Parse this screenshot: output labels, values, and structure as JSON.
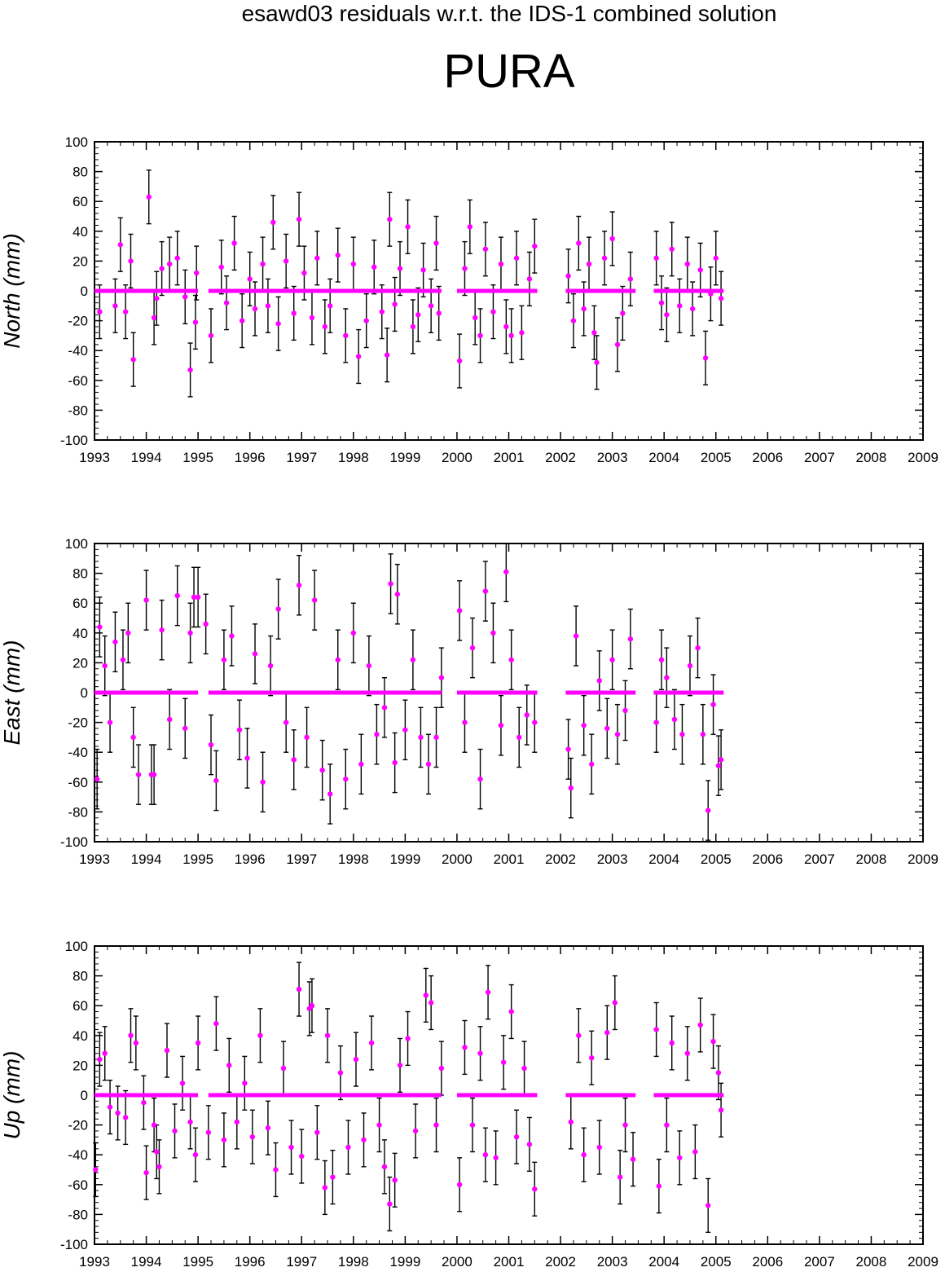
{
  "header": {
    "subtitle": "esawd03 residuals w.r.t. the IDS-1 combined solution",
    "station": "PURA"
  },
  "colors": {
    "marker": "#ff00ff",
    "errorbar": "#000000",
    "axis": "#000000"
  },
  "chart_data": [
    {
      "type": "scatter",
      "panel": "north",
      "ylabel": "North (mm)",
      "xlim": [
        1993,
        2009
      ],
      "ylim": [
        -100,
        100
      ],
      "x_ticks": [
        "1993",
        "1994",
        "1995",
        "1996",
        "1997",
        "1998",
        "1999",
        "2000",
        "2001",
        "2002",
        "2003",
        "2004",
        "2005",
        "2006",
        "2007",
        "2008",
        "2009"
      ],
      "y_ticks": [
        "100",
        "80",
        "60",
        "40",
        "20",
        "0",
        "-20",
        "-40",
        "-60",
        "-80",
        "-100"
      ],
      "error_bars": true,
      "zero_line_segments": [
        [
          1993.0,
          1995.0
        ],
        [
          1995.2,
          1999.7
        ],
        [
          2000.0,
          2001.55
        ],
        [
          2002.1,
          2003.45
        ],
        [
          2003.8,
          2005.15
        ]
      ],
      "typical_error_mm": 18,
      "points": [
        [
          1993.1,
          -14
        ],
        [
          1993.4,
          -10
        ],
        [
          1993.5,
          31
        ],
        [
          1993.6,
          -14
        ],
        [
          1993.7,
          20
        ],
        [
          1993.75,
          -46
        ],
        [
          1994.05,
          63
        ],
        [
          1994.15,
          -18
        ],
        [
          1994.2,
          -5
        ],
        [
          1994.3,
          15
        ],
        [
          1994.45,
          18
        ],
        [
          1994.6,
          22
        ],
        [
          1994.75,
          -4
        ],
        [
          1994.85,
          -53
        ],
        [
          1994.95,
          -21
        ],
        [
          1994.97,
          12
        ],
        [
          1995.25,
          -30
        ],
        [
          1995.45,
          16
        ],
        [
          1995.55,
          -8
        ],
        [
          1995.7,
          32
        ],
        [
          1995.85,
          -20
        ],
        [
          1996.0,
          8
        ],
        [
          1996.1,
          -12
        ],
        [
          1996.25,
          18
        ],
        [
          1996.35,
          -10
        ],
        [
          1996.45,
          46
        ],
        [
          1996.55,
          -22
        ],
        [
          1996.7,
          20
        ],
        [
          1996.85,
          -15
        ],
        [
          1996.95,
          48
        ],
        [
          1997.05,
          12
        ],
        [
          1997.2,
          -18
        ],
        [
          1997.3,
          22
        ],
        [
          1997.45,
          -24
        ],
        [
          1997.55,
          -10
        ],
        [
          1997.7,
          24
        ],
        [
          1997.85,
          -30
        ],
        [
          1998.0,
          18
        ],
        [
          1998.1,
          -44
        ],
        [
          1998.25,
          -20
        ],
        [
          1998.4,
          16
        ],
        [
          1998.55,
          -14
        ],
        [
          1998.65,
          -43
        ],
        [
          1998.7,
          48
        ],
        [
          1998.8,
          -9
        ],
        [
          1998.9,
          15
        ],
        [
          1999.05,
          43
        ],
        [
          1999.15,
          -24
        ],
        [
          1999.25,
          -16
        ],
        [
          1999.35,
          14
        ],
        [
          1999.5,
          -10
        ],
        [
          1999.6,
          32
        ],
        [
          1999.65,
          -15
        ],
        [
          2000.05,
          -47
        ],
        [
          2000.15,
          15
        ],
        [
          2000.25,
          43
        ],
        [
          2000.35,
          -18
        ],
        [
          2000.45,
          -30
        ],
        [
          2000.55,
          28
        ],
        [
          2000.7,
          -14
        ],
        [
          2000.85,
          18
        ],
        [
          2000.95,
          -24
        ],
        [
          2001.05,
          -30
        ],
        [
          2001.15,
          22
        ],
        [
          2001.25,
          -28
        ],
        [
          2001.4,
          8
        ],
        [
          2001.5,
          30
        ],
        [
          2002.15,
          10
        ],
        [
          2002.25,
          -20
        ],
        [
          2002.35,
          32
        ],
        [
          2002.45,
          -12
        ],
        [
          2002.55,
          18
        ],
        [
          2002.65,
          -28
        ],
        [
          2002.7,
          -48
        ],
        [
          2002.85,
          22
        ],
        [
          2003.0,
          35
        ],
        [
          2003.1,
          -36
        ],
        [
          2003.2,
          -15
        ],
        [
          2003.35,
          8
        ],
        [
          2003.85,
          22
        ],
        [
          2003.95,
          -8
        ],
        [
          2004.05,
          -16
        ],
        [
          2004.15,
          28
        ],
        [
          2004.3,
          -10
        ],
        [
          2004.45,
          18
        ],
        [
          2004.55,
          -12
        ],
        [
          2004.7,
          14
        ],
        [
          2004.8,
          -45
        ],
        [
          2004.9,
          -2
        ],
        [
          2005.0,
          22
        ],
        [
          2005.1,
          -5
        ]
      ]
    },
    {
      "type": "scatter",
      "panel": "east",
      "ylabel": "East (mm)",
      "xlim": [
        1993,
        2009
      ],
      "ylim": [
        -100,
        100
      ],
      "x_ticks": [
        "1993",
        "1994",
        "1995",
        "1996",
        "1997",
        "1998",
        "1999",
        "2000",
        "2001",
        "2002",
        "2003",
        "2004",
        "2005",
        "2006",
        "2007",
        "2008",
        "2009"
      ],
      "y_ticks": [
        "100",
        "80",
        "60",
        "40",
        "20",
        "0",
        "-20",
        "-40",
        "-60",
        "-80",
        "-100"
      ],
      "error_bars": true,
      "zero_line_segments": [
        [
          1993.0,
          1995.0
        ],
        [
          1995.2,
          1999.7
        ],
        [
          2000.0,
          2001.55
        ],
        [
          2002.1,
          2003.45
        ],
        [
          2003.8,
          2005.15
        ]
      ],
      "typical_error_mm": 20,
      "points": [
        [
          1993.05,
          -58
        ],
        [
          1993.1,
          44
        ],
        [
          1993.2,
          18
        ],
        [
          1993.3,
          -20
        ],
        [
          1993.4,
          34
        ],
        [
          1993.55,
          22
        ],
        [
          1993.65,
          40
        ],
        [
          1993.75,
          -30
        ],
        [
          1993.85,
          -55
        ],
        [
          1994.0,
          62
        ],
        [
          1994.1,
          -55
        ],
        [
          1994.15,
          -55
        ],
        [
          1994.3,
          42
        ],
        [
          1994.45,
          -18
        ],
        [
          1994.6,
          65
        ],
        [
          1994.75,
          -24
        ],
        [
          1994.85,
          40
        ],
        [
          1994.92,
          64
        ],
        [
          1995.0,
          64
        ],
        [
          1995.15,
          46
        ],
        [
          1995.25,
          -35
        ],
        [
          1995.35,
          -59
        ],
        [
          1995.5,
          22
        ],
        [
          1995.65,
          38
        ],
        [
          1995.8,
          -25
        ],
        [
          1995.95,
          -44
        ],
        [
          1996.1,
          26
        ],
        [
          1996.25,
          -60
        ],
        [
          1996.4,
          18
        ],
        [
          1996.55,
          56
        ],
        [
          1996.7,
          -20
        ],
        [
          1996.85,
          -45
        ],
        [
          1996.95,
          72
        ],
        [
          1997.1,
          -30
        ],
        [
          1997.25,
          62
        ],
        [
          1997.4,
          -52
        ],
        [
          1997.55,
          -68
        ],
        [
          1997.7,
          22
        ],
        [
          1997.85,
          -58
        ],
        [
          1998.0,
          40
        ],
        [
          1998.15,
          -48
        ],
        [
          1998.3,
          18
        ],
        [
          1998.45,
          -28
        ],
        [
          1998.6,
          -10
        ],
        [
          1998.72,
          73
        ],
        [
          1998.8,
          -47
        ],
        [
          1998.85,
          66
        ],
        [
          1999.0,
          -25
        ],
        [
          1999.15,
          22
        ],
        [
          1999.3,
          -30
        ],
        [
          1999.45,
          -48
        ],
        [
          1999.6,
          -30
        ],
        [
          1999.7,
          10
        ],
        [
          2000.05,
          55
        ],
        [
          2000.15,
          -20
        ],
        [
          2000.3,
          30
        ],
        [
          2000.45,
          -58
        ],
        [
          2000.55,
          68
        ],
        [
          2000.7,
          40
        ],
        [
          2000.85,
          -22
        ],
        [
          2000.95,
          81
        ],
        [
          2001.05,
          22
        ],
        [
          2001.2,
          -30
        ],
        [
          2001.35,
          -15
        ],
        [
          2001.5,
          -20
        ],
        [
          2002.15,
          -38
        ],
        [
          2002.2,
          -64
        ],
        [
          2002.3,
          38
        ],
        [
          2002.45,
          -22
        ],
        [
          2002.6,
          -48
        ],
        [
          2002.75,
          8
        ],
        [
          2002.9,
          -24
        ],
        [
          2003.0,
          22
        ],
        [
          2003.1,
          -28
        ],
        [
          2003.25,
          -12
        ],
        [
          2003.35,
          36
        ],
        [
          2003.85,
          -20
        ],
        [
          2003.95,
          22
        ],
        [
          2004.05,
          10
        ],
        [
          2004.2,
          -18
        ],
        [
          2004.35,
          -28
        ],
        [
          2004.5,
          18
        ],
        [
          2004.65,
          30
        ],
        [
          2004.75,
          -28
        ],
        [
          2004.85,
          -79
        ],
        [
          2004.95,
          -8
        ],
        [
          2005.05,
          -49
        ],
        [
          2005.1,
          -45
        ]
      ]
    },
    {
      "type": "scatter",
      "panel": "up",
      "ylabel": "Up (mm)",
      "xlim": [
        1993,
        2009
      ],
      "ylim": [
        -100,
        100
      ],
      "x_ticks": [
        "1993",
        "1994",
        "1995",
        "1996",
        "1997",
        "1998",
        "1999",
        "2000",
        "2001",
        "2002",
        "2003",
        "2004",
        "2005",
        "2006",
        "2007",
        "2008",
        "2009"
      ],
      "y_ticks": [
        "100",
        "80",
        "60",
        "40",
        "20",
        "0",
        "-20",
        "-40",
        "-60",
        "-80",
        "-100"
      ],
      "error_bars": true,
      "zero_line_segments": [
        [
          1993.0,
          1995.0
        ],
        [
          1995.2,
          1999.7
        ],
        [
          2000.0,
          2001.55
        ],
        [
          2002.1,
          2003.45
        ],
        [
          2003.8,
          2005.15
        ]
      ],
      "typical_error_mm": 18,
      "points": [
        [
          1993.02,
          -50
        ],
        [
          1993.1,
          24
        ],
        [
          1993.2,
          28
        ],
        [
          1993.3,
          -8
        ],
        [
          1993.45,
          -12
        ],
        [
          1993.6,
          -15
        ],
        [
          1993.7,
          40
        ],
        [
          1993.8,
          35
        ],
        [
          1993.95,
          -5
        ],
        [
          1994.0,
          -52
        ],
        [
          1994.15,
          -20
        ],
        [
          1994.2,
          -38
        ],
        [
          1994.25,
          -48
        ],
        [
          1994.4,
          30
        ],
        [
          1994.55,
          -24
        ],
        [
          1994.7,
          8
        ],
        [
          1994.85,
          -18
        ],
        [
          1994.95,
          -40
        ],
        [
          1995.0,
          35
        ],
        [
          1995.2,
          -25
        ],
        [
          1995.35,
          48
        ],
        [
          1995.5,
          -30
        ],
        [
          1995.6,
          20
        ],
        [
          1995.75,
          -18
        ],
        [
          1995.9,
          8
        ],
        [
          1996.05,
          -28
        ],
        [
          1996.2,
          40
        ],
        [
          1996.35,
          -22
        ],
        [
          1996.5,
          -50
        ],
        [
          1996.65,
          18
        ],
        [
          1996.8,
          -35
        ],
        [
          1996.95,
          71
        ],
        [
          1997.0,
          -41
        ],
        [
          1997.15,
          58
        ],
        [
          1997.2,
          60
        ],
        [
          1997.3,
          -25
        ],
        [
          1997.45,
          -62
        ],
        [
          1997.5,
          40
        ],
        [
          1997.6,
          -55
        ],
        [
          1997.75,
          15
        ],
        [
          1997.9,
          -35
        ],
        [
          1998.05,
          24
        ],
        [
          1998.2,
          -30
        ],
        [
          1998.35,
          35
        ],
        [
          1998.5,
          -20
        ],
        [
          1998.6,
          -48
        ],
        [
          1998.7,
          -73
        ],
        [
          1998.8,
          -57
        ],
        [
          1998.9,
          20
        ],
        [
          1999.05,
          38
        ],
        [
          1999.2,
          -24
        ],
        [
          1999.4,
          67
        ],
        [
          1999.5,
          62
        ],
        [
          1999.6,
          -20
        ],
        [
          1999.7,
          18
        ],
        [
          2000.05,
          -60
        ],
        [
          2000.15,
          32
        ],
        [
          2000.3,
          -20
        ],
        [
          2000.45,
          28
        ],
        [
          2000.55,
          -40
        ],
        [
          2000.6,
          69
        ],
        [
          2000.75,
          -42
        ],
        [
          2000.9,
          22
        ],
        [
          2001.05,
          56
        ],
        [
          2001.15,
          -28
        ],
        [
          2001.3,
          18
        ],
        [
          2001.4,
          -33
        ],
        [
          2001.5,
          -63
        ],
        [
          2002.2,
          -18
        ],
        [
          2002.35,
          40
        ],
        [
          2002.45,
          -40
        ],
        [
          2002.6,
          25
        ],
        [
          2002.75,
          -35
        ],
        [
          2002.9,
          42
        ],
        [
          2003.05,
          62
        ],
        [
          2003.15,
          -55
        ],
        [
          2003.25,
          -20
        ],
        [
          2003.4,
          -43
        ],
        [
          2003.85,
          44
        ],
        [
          2003.9,
          -61
        ],
        [
          2004.05,
          -20
        ],
        [
          2004.15,
          35
        ],
        [
          2004.3,
          -42
        ],
        [
          2004.45,
          28
        ],
        [
          2004.6,
          -38
        ],
        [
          2004.7,
          47
        ],
        [
          2004.85,
          -74
        ],
        [
          2004.95,
          36
        ],
        [
          2005.05,
          15
        ],
        [
          2005.1,
          -10
        ]
      ]
    }
  ]
}
